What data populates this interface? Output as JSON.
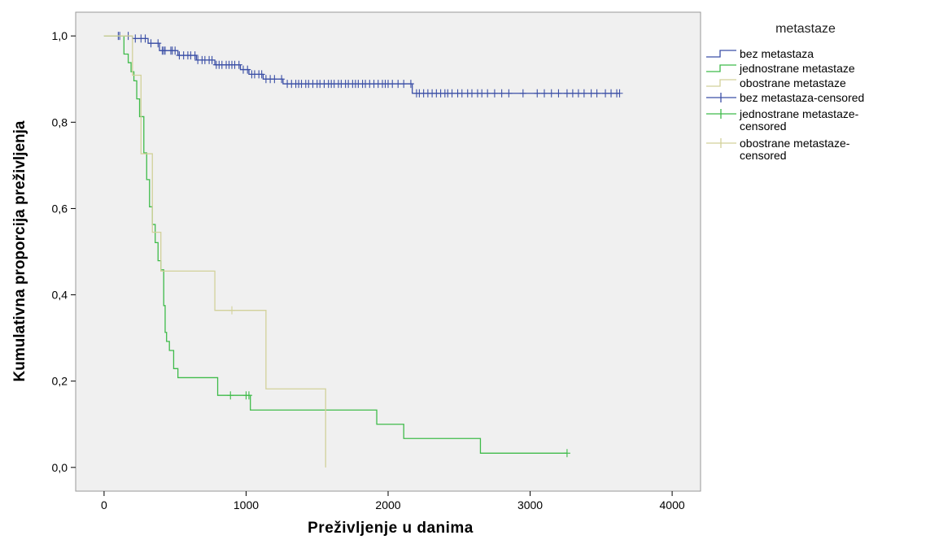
{
  "chart_data": {
    "type": "line",
    "subtype": "kaplan-meier",
    "xlabel": "Preživljenje u danima",
    "ylabel": "Kumulativna proporcija preživljenja",
    "xlim": [
      -200,
      4200
    ],
    "ylim": [
      -0.055,
      1.055
    ],
    "x_ticks": [
      0,
      1000,
      2000,
      3000,
      4000
    ],
    "x_tick_labels": [
      "0",
      "1000",
      "2000",
      "3000",
      "4000"
    ],
    "y_ticks": [
      0.0,
      0.2,
      0.4,
      0.6,
      0.8,
      1.0
    ],
    "y_tick_labels": [
      "0,0",
      "0,2",
      "0,4",
      "0,6",
      "0,8",
      "1,0"
    ],
    "grid": false,
    "background": "#f0f0f0",
    "legend": {
      "title": "metastaze",
      "placement": "right",
      "entries": [
        {
          "label": "bez metastaza",
          "kind": "line",
          "color": "#3b4fa6"
        },
        {
          "label": "jednostrane metastaze",
          "kind": "line",
          "color": "#3fbb4a"
        },
        {
          "label": "obostrane metastaze",
          "kind": "line",
          "color": "#d2d19a"
        },
        {
          "label": "bez metastaza-censored",
          "kind": "censor",
          "color": "#3b4fa6"
        },
        {
          "label": "jednostrane metastaze-\ncensored",
          "kind": "censor",
          "color": "#3fbb4a"
        },
        {
          "label": "obostrane metastaze-\ncensored",
          "kind": "censor",
          "color": "#d2d19a"
        }
      ]
    },
    "series": [
      {
        "name": "bez metastaza",
        "color": "#3b4fa6",
        "steps": [
          [
            0,
            1.0
          ],
          [
            200,
            0.994
          ],
          [
            310,
            0.983
          ],
          [
            390,
            0.966
          ],
          [
            520,
            0.955
          ],
          [
            650,
            0.944
          ],
          [
            780,
            0.933
          ],
          [
            960,
            0.922
          ],
          [
            1020,
            0.911
          ],
          [
            1120,
            0.9
          ],
          [
            1260,
            0.889
          ],
          [
            2170,
            0.867
          ],
          [
            3630,
            0.867
          ]
        ],
        "censored": [
          100,
          110,
          170,
          220,
          260,
          290,
          330,
          380,
          410,
          420,
          430,
          470,
          480,
          500,
          530,
          560,
          590,
          610,
          640,
          660,
          690,
          710,
          740,
          760,
          790,
          810,
          830,
          860,
          880,
          900,
          920,
          950,
          980,
          1010,
          1040,
          1060,
          1090,
          1110,
          1140,
          1170,
          1200,
          1250,
          1290,
          1320,
          1350,
          1370,
          1390,
          1420,
          1440,
          1470,
          1500,
          1520,
          1550,
          1580,
          1600,
          1620,
          1650,
          1670,
          1700,
          1720,
          1750,
          1770,
          1790,
          1820,
          1840,
          1870,
          1900,
          1930,
          1960,
          1980,
          2000,
          2030,
          2070,
          2110,
          2160,
          2200,
          2220,
          2250,
          2280,
          2310,
          2340,
          2370,
          2400,
          2420,
          2450,
          2490,
          2520,
          2560,
          2590,
          2630,
          2660,
          2700,
          2750,
          2800,
          2850,
          2950,
          3050,
          3100,
          3150,
          3200,
          3260,
          3300,
          3340,
          3380,
          3430,
          3470,
          3530,
          3570,
          3610,
          3630
        ]
      },
      {
        "name": "jednostrane metastaze",
        "color": "#3fbb4a",
        "steps": [
          [
            0,
            1.0
          ],
          [
            100,
            1.0
          ],
          [
            140,
            0.958
          ],
          [
            170,
            0.938
          ],
          [
            190,
            0.917
          ],
          [
            210,
            0.896
          ],
          [
            230,
            0.854
          ],
          [
            250,
            0.813
          ],
          [
            280,
            0.729
          ],
          [
            300,
            0.667
          ],
          [
            320,
            0.604
          ],
          [
            340,
            0.563
          ],
          [
            360,
            0.521
          ],
          [
            380,
            0.479
          ],
          [
            400,
            0.458
          ],
          [
            420,
            0.375
          ],
          [
            430,
            0.313
          ],
          [
            440,
            0.292
          ],
          [
            460,
            0.271
          ],
          [
            490,
            0.229
          ],
          [
            520,
            0.208
          ],
          [
            800,
            0.167
          ],
          [
            1030,
            0.133
          ],
          [
            1920,
            0.1
          ],
          [
            2110,
            0.067
          ],
          [
            2650,
            0.033
          ],
          [
            3260,
            0.033
          ]
        ],
        "censored": [
          890,
          1000,
          1020,
          3260
        ]
      },
      {
        "name": "obostrane metastaze",
        "color": "#d2d19a",
        "steps": [
          [
            0,
            1.0
          ],
          [
            130,
            1.0
          ],
          [
            200,
            0.909
          ],
          [
            260,
            0.727
          ],
          [
            340,
            0.545
          ],
          [
            400,
            0.455
          ],
          [
            780,
            0.364
          ],
          [
            1140,
            0.182
          ],
          [
            1560,
            0.0
          ]
        ],
        "censored": [
          900
        ]
      }
    ]
  }
}
